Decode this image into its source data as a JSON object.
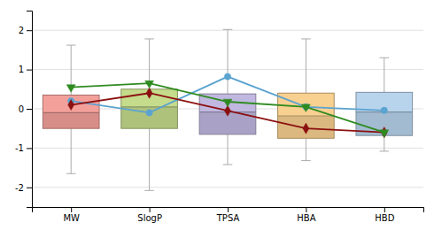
{
  "chart_data": {
    "type": "box",
    "categories": [
      "MW",
      "SlogP",
      "TPSA",
      "HBA",
      "HBD"
    ],
    "boxes": [
      {
        "q1": -0.5,
        "q3": 0.35,
        "whisker_lo": -1.65,
        "whisker_hi": 1.62,
        "median": -0.1
      },
      {
        "q1": -0.5,
        "q3": 0.5,
        "whisker_lo": -2.08,
        "whisker_hi": 1.78,
        "median": 0.05
      },
      {
        "q1": -0.65,
        "q3": 0.38,
        "whisker_lo": -1.42,
        "whisker_hi": 2.02,
        "median": -0.08
      },
      {
        "q1": -0.75,
        "q3": 0.4,
        "whisker_lo": -1.32,
        "whisker_hi": 1.78,
        "median": -0.18
      },
      {
        "q1": -0.68,
        "q3": 0.42,
        "whisker_lo": -1.08,
        "whisker_hi": 1.3,
        "median": -0.08
      }
    ],
    "colors": [
      "#F4A09A",
      "#C5DC8C",
      "#C0B8E0",
      "#F8D090",
      "#B8D4EC"
    ],
    "series": [
      {
        "type": "line",
        "color": "#5BA3D0",
        "marker": "circle",
        "values": [
          0.2,
          -0.1,
          0.82,
          0.05,
          -0.04
        ]
      },
      {
        "type": "line",
        "color": "#8B1010",
        "marker": "diamond",
        "values": [
          0.1,
          0.4,
          -0.05,
          -0.5,
          -0.6
        ]
      },
      {
        "type": "line",
        "color": "#2E8B20",
        "marker": "triangle-down",
        "values": [
          0.55,
          0.65,
          0.18,
          0.05,
          -0.6
        ]
      }
    ],
    "ylim": [
      -2.5,
      2.5
    ],
    "yticks": [
      -2,
      -1,
      0,
      1,
      2
    ],
    "grid": true
  }
}
